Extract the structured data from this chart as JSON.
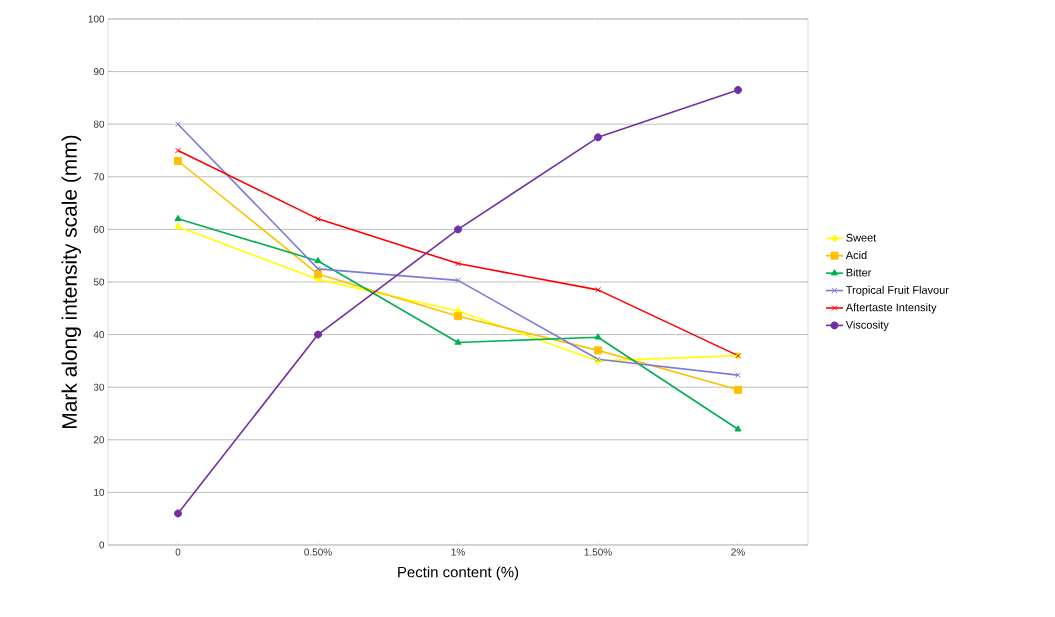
{
  "chart_data": {
    "type": "line",
    "xlabel": "Pectin content (%)",
    "ylabel": "Mark along  intensity scale (mm)",
    "categories": [
      "0",
      "0.50%",
      "1%",
      "1.50%",
      "2%"
    ],
    "series": [
      {
        "name": "Sweet",
        "color": "#ffff00",
        "marker": "diamond",
        "values": [
          60.5,
          50.5,
          44.5,
          35,
          36
        ]
      },
      {
        "name": "Acid",
        "color": "#ffc000",
        "marker": "square",
        "values": [
          73,
          51.5,
          43.5,
          37,
          29.5
        ]
      },
      {
        "name": "Bitter",
        "color": "#00b050",
        "marker": "triangle",
        "values": [
          62,
          54,
          38.5,
          39.5,
          22
        ]
      },
      {
        "name": "Tropical Fruit Flavour",
        "color": "#7b7bdb",
        "marker": "cross",
        "values": [
          80,
          52.5,
          50.3,
          35.3,
          32.3
        ]
      },
      {
        "name": "Aftertaste Intensity",
        "color": "#ff0000",
        "marker": "cross",
        "values": [
          75,
          62,
          53.5,
          48.5,
          36
        ]
      },
      {
        "name": "Viscosity",
        "color": "#7030a0",
        "marker": "circle",
        "values": [
          6,
          40,
          60,
          77.5,
          86.5
        ]
      }
    ],
    "ylim": [
      0,
      100
    ],
    "yticks": [
      0,
      10,
      20,
      30,
      40,
      50,
      60,
      70,
      80,
      90,
      100
    ],
    "grid": "y",
    "legend": "right"
  }
}
